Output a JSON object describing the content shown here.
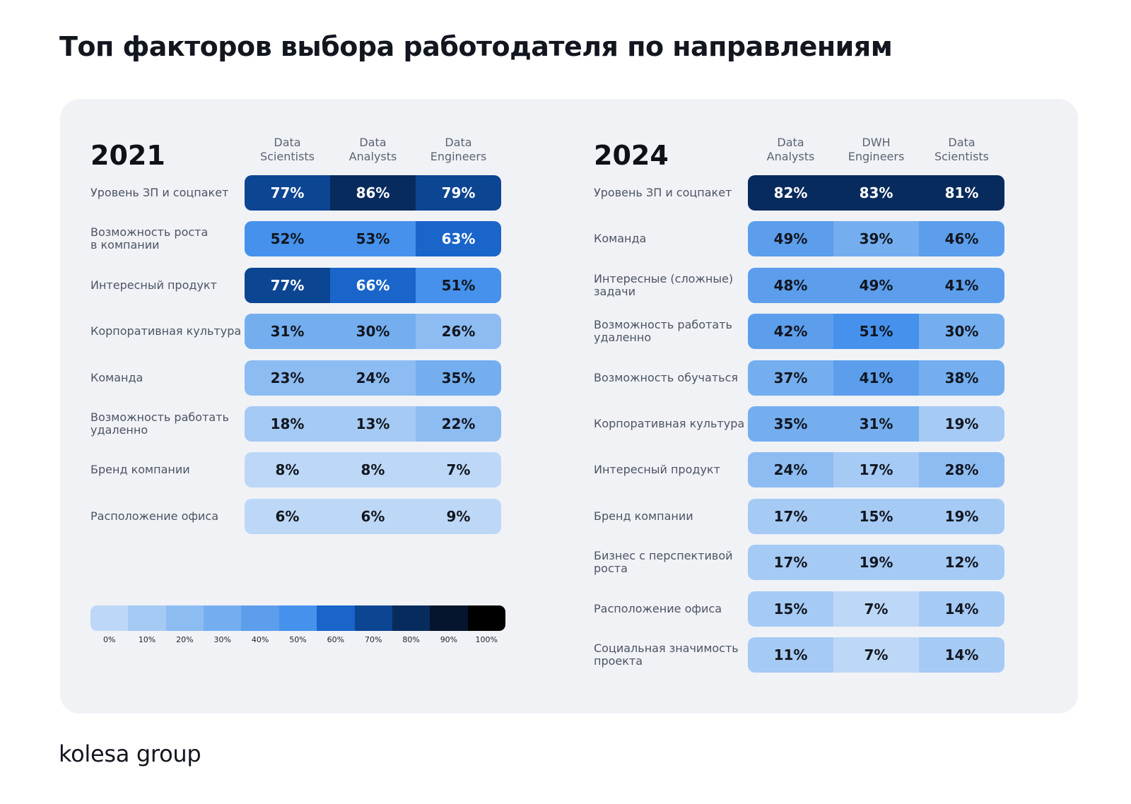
{
  "title": "Топ факторов выбора работодателя по направлениям",
  "brand": "kolesa group",
  "colors": {
    "card_bg": "#f0f2f6",
    "scale": [
      "#bdd8f7",
      "#a5caf4",
      "#8dbcf2",
      "#74aeef",
      "#5c9eec",
      "#4591ec",
      "#1965ca",
      "#0c4592",
      "#082b5e",
      "#06152d",
      "#000000"
    ]
  },
  "legend": {
    "ticks": [
      "0%",
      "10%",
      "20%",
      "30%",
      "40%",
      "50%",
      "60%",
      "70%",
      "80%",
      "90%",
      "100%"
    ]
  },
  "chart_data": [
    {
      "type": "heatmap",
      "title": "2021",
      "columns": [
        "Data\nScientists",
        "Data\nAnalysts",
        "Data\nEngineers"
      ],
      "rows": [
        {
          "label": "Уровень ЗП и соцпакет",
          "values": [
            77,
            86,
            79
          ]
        },
        {
          "label": "Возможность роста\nв компании",
          "values": [
            52,
            53,
            63
          ]
        },
        {
          "label": "Интересный продукт",
          "values": [
            77,
            66,
            51
          ]
        },
        {
          "label": "Корпоративная культура",
          "values": [
            31,
            30,
            26
          ]
        },
        {
          "label": "Команда",
          "values": [
            23,
            24,
            35
          ]
        },
        {
          "label": "Возможность работать\nудаленно",
          "values": [
            18,
            13,
            22
          ]
        },
        {
          "label": "Бренд компании",
          "values": [
            8,
            8,
            7
          ]
        },
        {
          "label": "Расположение офиса",
          "values": [
            6,
            6,
            9
          ]
        }
      ],
      "unit": "%"
    },
    {
      "type": "heatmap",
      "title": "2024",
      "columns": [
        "Data\nAnalysts",
        "DWH\nEngineers",
        "Data\nScientists"
      ],
      "rows": [
        {
          "label": "Уровень ЗП и соцпакет",
          "values": [
            82,
            83,
            81
          ]
        },
        {
          "label": "Команда",
          "values": [
            49,
            39,
            46
          ]
        },
        {
          "label": "Интересные (сложные)\nзадачи",
          "values": [
            48,
            49,
            41
          ]
        },
        {
          "label": "Возможность работать\nудаленно",
          "values": [
            42,
            51,
            30
          ]
        },
        {
          "label": "Возможность обучаться",
          "values": [
            37,
            41,
            38
          ]
        },
        {
          "label": "Корпоративная культура",
          "values": [
            35,
            31,
            19
          ]
        },
        {
          "label": "Интересный продукт",
          "values": [
            24,
            17,
            28
          ]
        },
        {
          "label": "Бренд компании",
          "values": [
            17,
            15,
            19
          ]
        },
        {
          "label": "Бизнес с перспективой\nроста",
          "values": [
            17,
            19,
            12
          ]
        },
        {
          "label": "Расположение офиса",
          "values": [
            15,
            7,
            14
          ]
        },
        {
          "label": "Социальная значимость\nпроекта",
          "values": [
            11,
            7,
            14
          ]
        }
      ],
      "unit": "%"
    }
  ]
}
